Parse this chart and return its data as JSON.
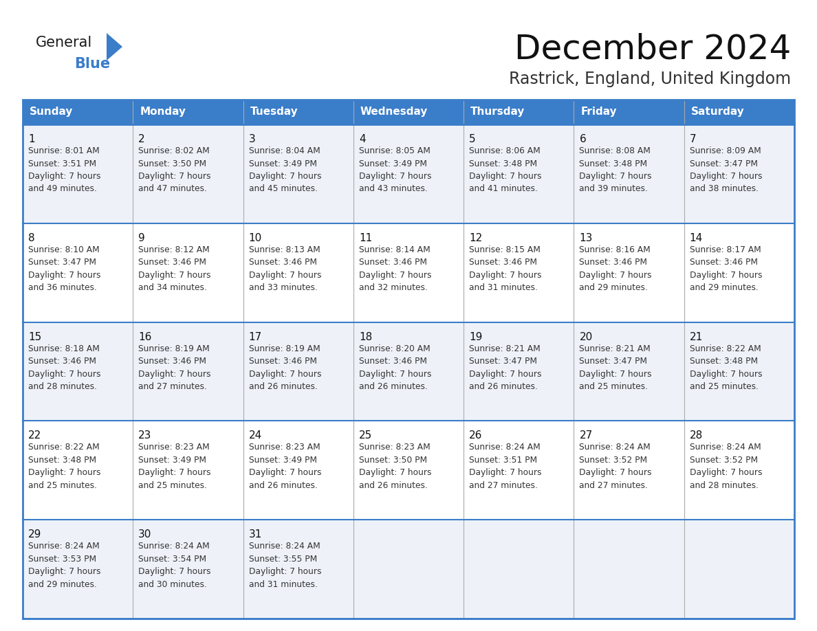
{
  "title": "December 2024",
  "subtitle": "Rastrick, England, United Kingdom",
  "header_color": "#3A7DC9",
  "header_text_color": "#FFFFFF",
  "day_names": [
    "Sunday",
    "Monday",
    "Tuesday",
    "Wednesday",
    "Thursday",
    "Friday",
    "Saturday"
  ],
  "bg_color": "#FFFFFF",
  "cell_bg_even": "#EEF2F8",
  "cell_bg_odd": "#FFFFFF",
  "border_color": "#3A7DC9",
  "weeks": [
    [
      {
        "day": 1,
        "sunrise": "8:01 AM",
        "sunset": "3:51 PM",
        "daylight": "7 hours",
        "daylight2": "and 49 minutes."
      },
      {
        "day": 2,
        "sunrise": "8:02 AM",
        "sunset": "3:50 PM",
        "daylight": "7 hours",
        "daylight2": "and 47 minutes."
      },
      {
        "day": 3,
        "sunrise": "8:04 AM",
        "sunset": "3:49 PM",
        "daylight": "7 hours",
        "daylight2": "and 45 minutes."
      },
      {
        "day": 4,
        "sunrise": "8:05 AM",
        "sunset": "3:49 PM",
        "daylight": "7 hours",
        "daylight2": "and 43 minutes."
      },
      {
        "day": 5,
        "sunrise": "8:06 AM",
        "sunset": "3:48 PM",
        "daylight": "7 hours",
        "daylight2": "and 41 minutes."
      },
      {
        "day": 6,
        "sunrise": "8:08 AM",
        "sunset": "3:48 PM",
        "daylight": "7 hours",
        "daylight2": "and 39 minutes."
      },
      {
        "day": 7,
        "sunrise": "8:09 AM",
        "sunset": "3:47 PM",
        "daylight": "7 hours",
        "daylight2": "and 38 minutes."
      }
    ],
    [
      {
        "day": 8,
        "sunrise": "8:10 AM",
        "sunset": "3:47 PM",
        "daylight": "7 hours",
        "daylight2": "and 36 minutes."
      },
      {
        "day": 9,
        "sunrise": "8:12 AM",
        "sunset": "3:46 PM",
        "daylight": "7 hours",
        "daylight2": "and 34 minutes."
      },
      {
        "day": 10,
        "sunrise": "8:13 AM",
        "sunset": "3:46 PM",
        "daylight": "7 hours",
        "daylight2": "and 33 minutes."
      },
      {
        "day": 11,
        "sunrise": "8:14 AM",
        "sunset": "3:46 PM",
        "daylight": "7 hours",
        "daylight2": "and 32 minutes."
      },
      {
        "day": 12,
        "sunrise": "8:15 AM",
        "sunset": "3:46 PM",
        "daylight": "7 hours",
        "daylight2": "and 31 minutes."
      },
      {
        "day": 13,
        "sunrise": "8:16 AM",
        "sunset": "3:46 PM",
        "daylight": "7 hours",
        "daylight2": "and 29 minutes."
      },
      {
        "day": 14,
        "sunrise": "8:17 AM",
        "sunset": "3:46 PM",
        "daylight": "7 hours",
        "daylight2": "and 29 minutes."
      }
    ],
    [
      {
        "day": 15,
        "sunrise": "8:18 AM",
        "sunset": "3:46 PM",
        "daylight": "7 hours",
        "daylight2": "and 28 minutes."
      },
      {
        "day": 16,
        "sunrise": "8:19 AM",
        "sunset": "3:46 PM",
        "daylight": "7 hours",
        "daylight2": "and 27 minutes."
      },
      {
        "day": 17,
        "sunrise": "8:19 AM",
        "sunset": "3:46 PM",
        "daylight": "7 hours",
        "daylight2": "and 26 minutes."
      },
      {
        "day": 18,
        "sunrise": "8:20 AM",
        "sunset": "3:46 PM",
        "daylight": "7 hours",
        "daylight2": "and 26 minutes."
      },
      {
        "day": 19,
        "sunrise": "8:21 AM",
        "sunset": "3:47 PM",
        "daylight": "7 hours",
        "daylight2": "and 26 minutes."
      },
      {
        "day": 20,
        "sunrise": "8:21 AM",
        "sunset": "3:47 PM",
        "daylight": "7 hours",
        "daylight2": "and 25 minutes."
      },
      {
        "day": 21,
        "sunrise": "8:22 AM",
        "sunset": "3:48 PM",
        "daylight": "7 hours",
        "daylight2": "and 25 minutes."
      }
    ],
    [
      {
        "day": 22,
        "sunrise": "8:22 AM",
        "sunset": "3:48 PM",
        "daylight": "7 hours",
        "daylight2": "and 25 minutes."
      },
      {
        "day": 23,
        "sunrise": "8:23 AM",
        "sunset": "3:49 PM",
        "daylight": "7 hours",
        "daylight2": "and 25 minutes."
      },
      {
        "day": 24,
        "sunrise": "8:23 AM",
        "sunset": "3:49 PM",
        "daylight": "7 hours",
        "daylight2": "and 26 minutes."
      },
      {
        "day": 25,
        "sunrise": "8:23 AM",
        "sunset": "3:50 PM",
        "daylight": "7 hours",
        "daylight2": "and 26 minutes."
      },
      {
        "day": 26,
        "sunrise": "8:24 AM",
        "sunset": "3:51 PM",
        "daylight": "7 hours",
        "daylight2": "and 27 minutes."
      },
      {
        "day": 27,
        "sunrise": "8:24 AM",
        "sunset": "3:52 PM",
        "daylight": "7 hours",
        "daylight2": "and 27 minutes."
      },
      {
        "day": 28,
        "sunrise": "8:24 AM",
        "sunset": "3:52 PM",
        "daylight": "7 hours",
        "daylight2": "and 28 minutes."
      }
    ],
    [
      {
        "day": 29,
        "sunrise": "8:24 AM",
        "sunset": "3:53 PM",
        "daylight": "7 hours",
        "daylight2": "and 29 minutes."
      },
      {
        "day": 30,
        "sunrise": "8:24 AM",
        "sunset": "3:54 PM",
        "daylight": "7 hours",
        "daylight2": "and 30 minutes."
      },
      {
        "day": 31,
        "sunrise": "8:24 AM",
        "sunset": "3:55 PM",
        "daylight": "7 hours",
        "daylight2": "and 31 minutes."
      },
      null,
      null,
      null,
      null
    ]
  ],
  "logo_text_general": "General",
  "logo_text_blue": "Blue",
  "logo_triangle_color": "#3A7DC9"
}
